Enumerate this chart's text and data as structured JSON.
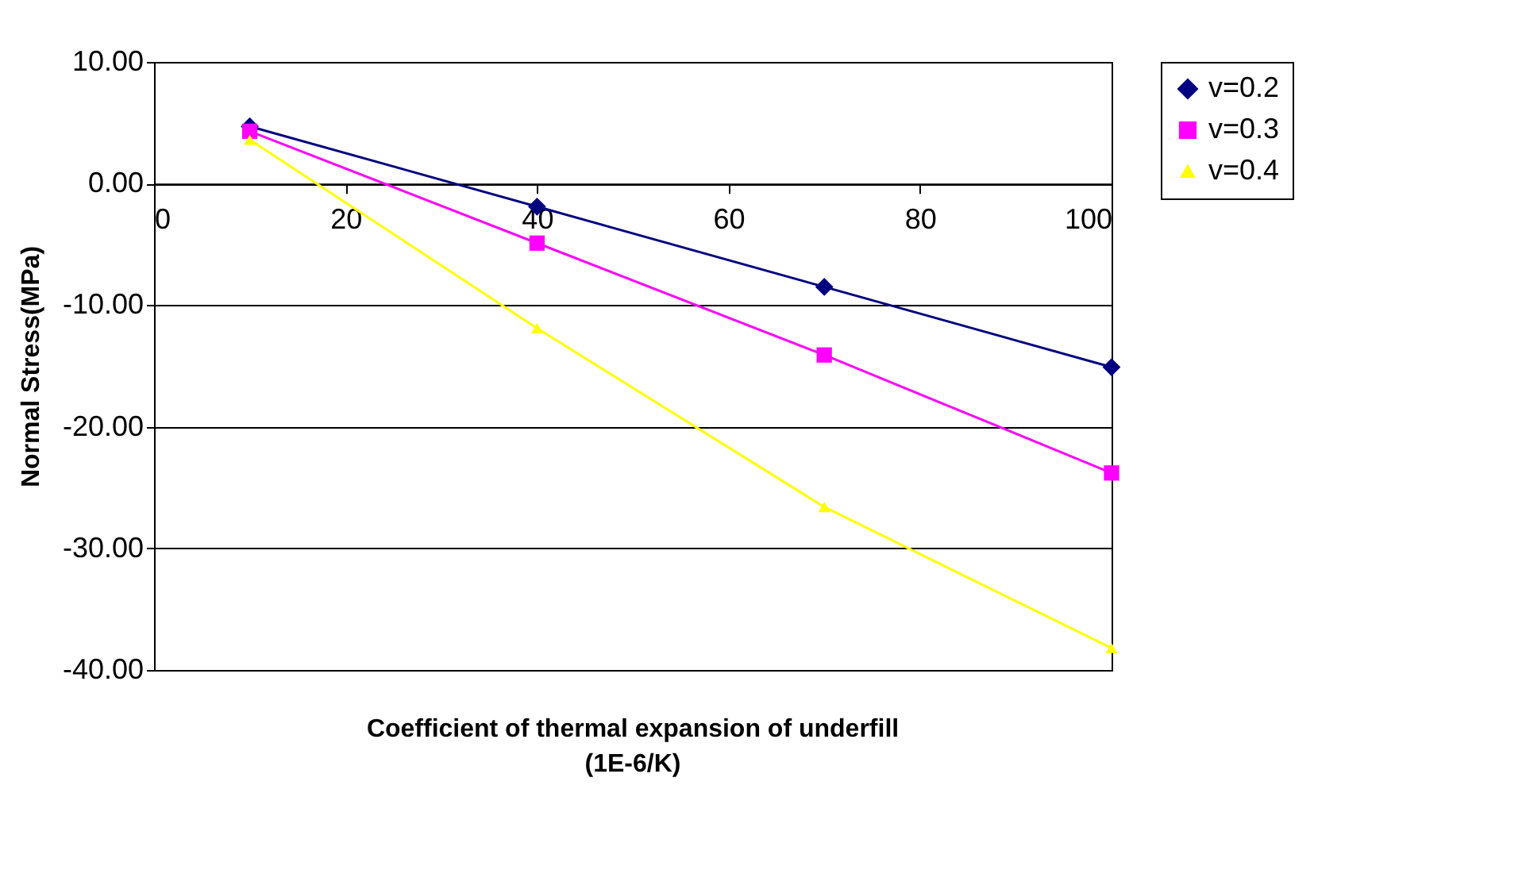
{
  "chart_data": {
    "type": "line",
    "xlabel": "Coefficient of thermal expansion of underfill\n(1E-6/K)",
    "ylabel": "Normal Stress(MPa)",
    "x": [
      10,
      40,
      70,
      100
    ],
    "series": [
      {
        "name": "v=0.2",
        "color": "#000080",
        "marker": "diamond",
        "values": [
          4.7,
          -1.9,
          -8.5,
          -15.1
        ]
      },
      {
        "name": "v=0.3",
        "color": "#ff00ff",
        "marker": "square",
        "values": [
          4.3,
          -4.9,
          -14.1,
          -23.8
        ]
      },
      {
        "name": "v=0.4",
        "color": "#ffff00",
        "marker": "triangle",
        "values": [
          3.6,
          -11.9,
          -26.6,
          -38.2
        ]
      }
    ],
    "xlim": [
      0,
      100
    ],
    "xticks": [
      0,
      20,
      40,
      60,
      80,
      100
    ],
    "ylim": [
      -40,
      10
    ],
    "yticks": [
      {
        "value": -40,
        "label": "-40.00"
      },
      {
        "value": -30,
        "label": "-30.00"
      },
      {
        "value": -20,
        "label": "-20.00"
      },
      {
        "value": -10,
        "label": "-10.00"
      },
      {
        "value": 0,
        "label": "0.00"
      },
      {
        "value": 10,
        "label": "10.00"
      }
    ],
    "grid": "y",
    "legend": "right",
    "line_style": "solid"
  }
}
